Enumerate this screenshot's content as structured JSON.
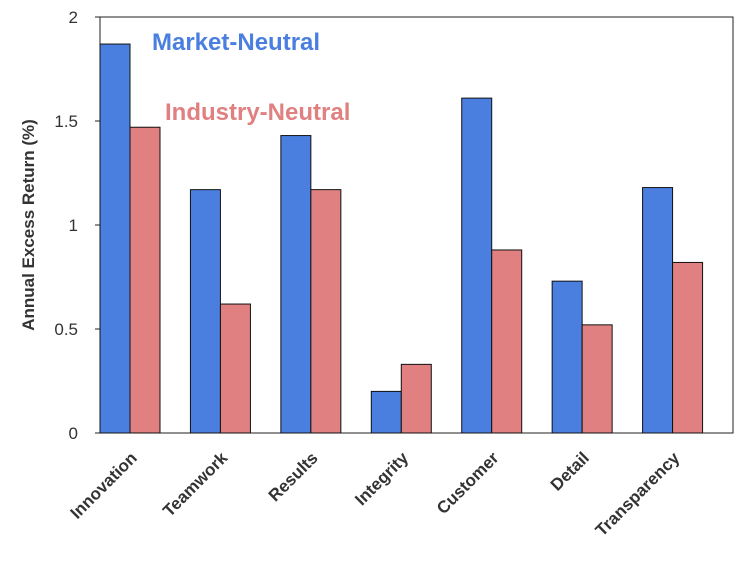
{
  "chart_data": {
    "type": "bar",
    "title": "",
    "xlabel": "",
    "ylabel": "Annual Excess Return (%)",
    "ylim": [
      0,
      2
    ],
    "yticks": [
      0,
      0.5,
      1,
      1.5,
      2
    ],
    "ytick_labels": [
      "0",
      "0.5",
      "1",
      "1.5",
      "2"
    ],
    "grid": false,
    "legend_placement": "top-left",
    "categories": [
      "Innovation",
      "Teamwork",
      "Results",
      "Integrity",
      "Customer",
      "Detail",
      "Transparency"
    ],
    "series": [
      {
        "name": "Market-Neutral",
        "color": "#4a7fe0",
        "values": [
          1.87,
          1.17,
          1.43,
          0.2,
          1.61,
          0.73,
          1.18
        ]
      },
      {
        "name": "Industry-Neutral",
        "color": "#e08080",
        "values": [
          1.47,
          0.62,
          1.17,
          0.33,
          0.88,
          0.52,
          0.82
        ]
      }
    ]
  }
}
